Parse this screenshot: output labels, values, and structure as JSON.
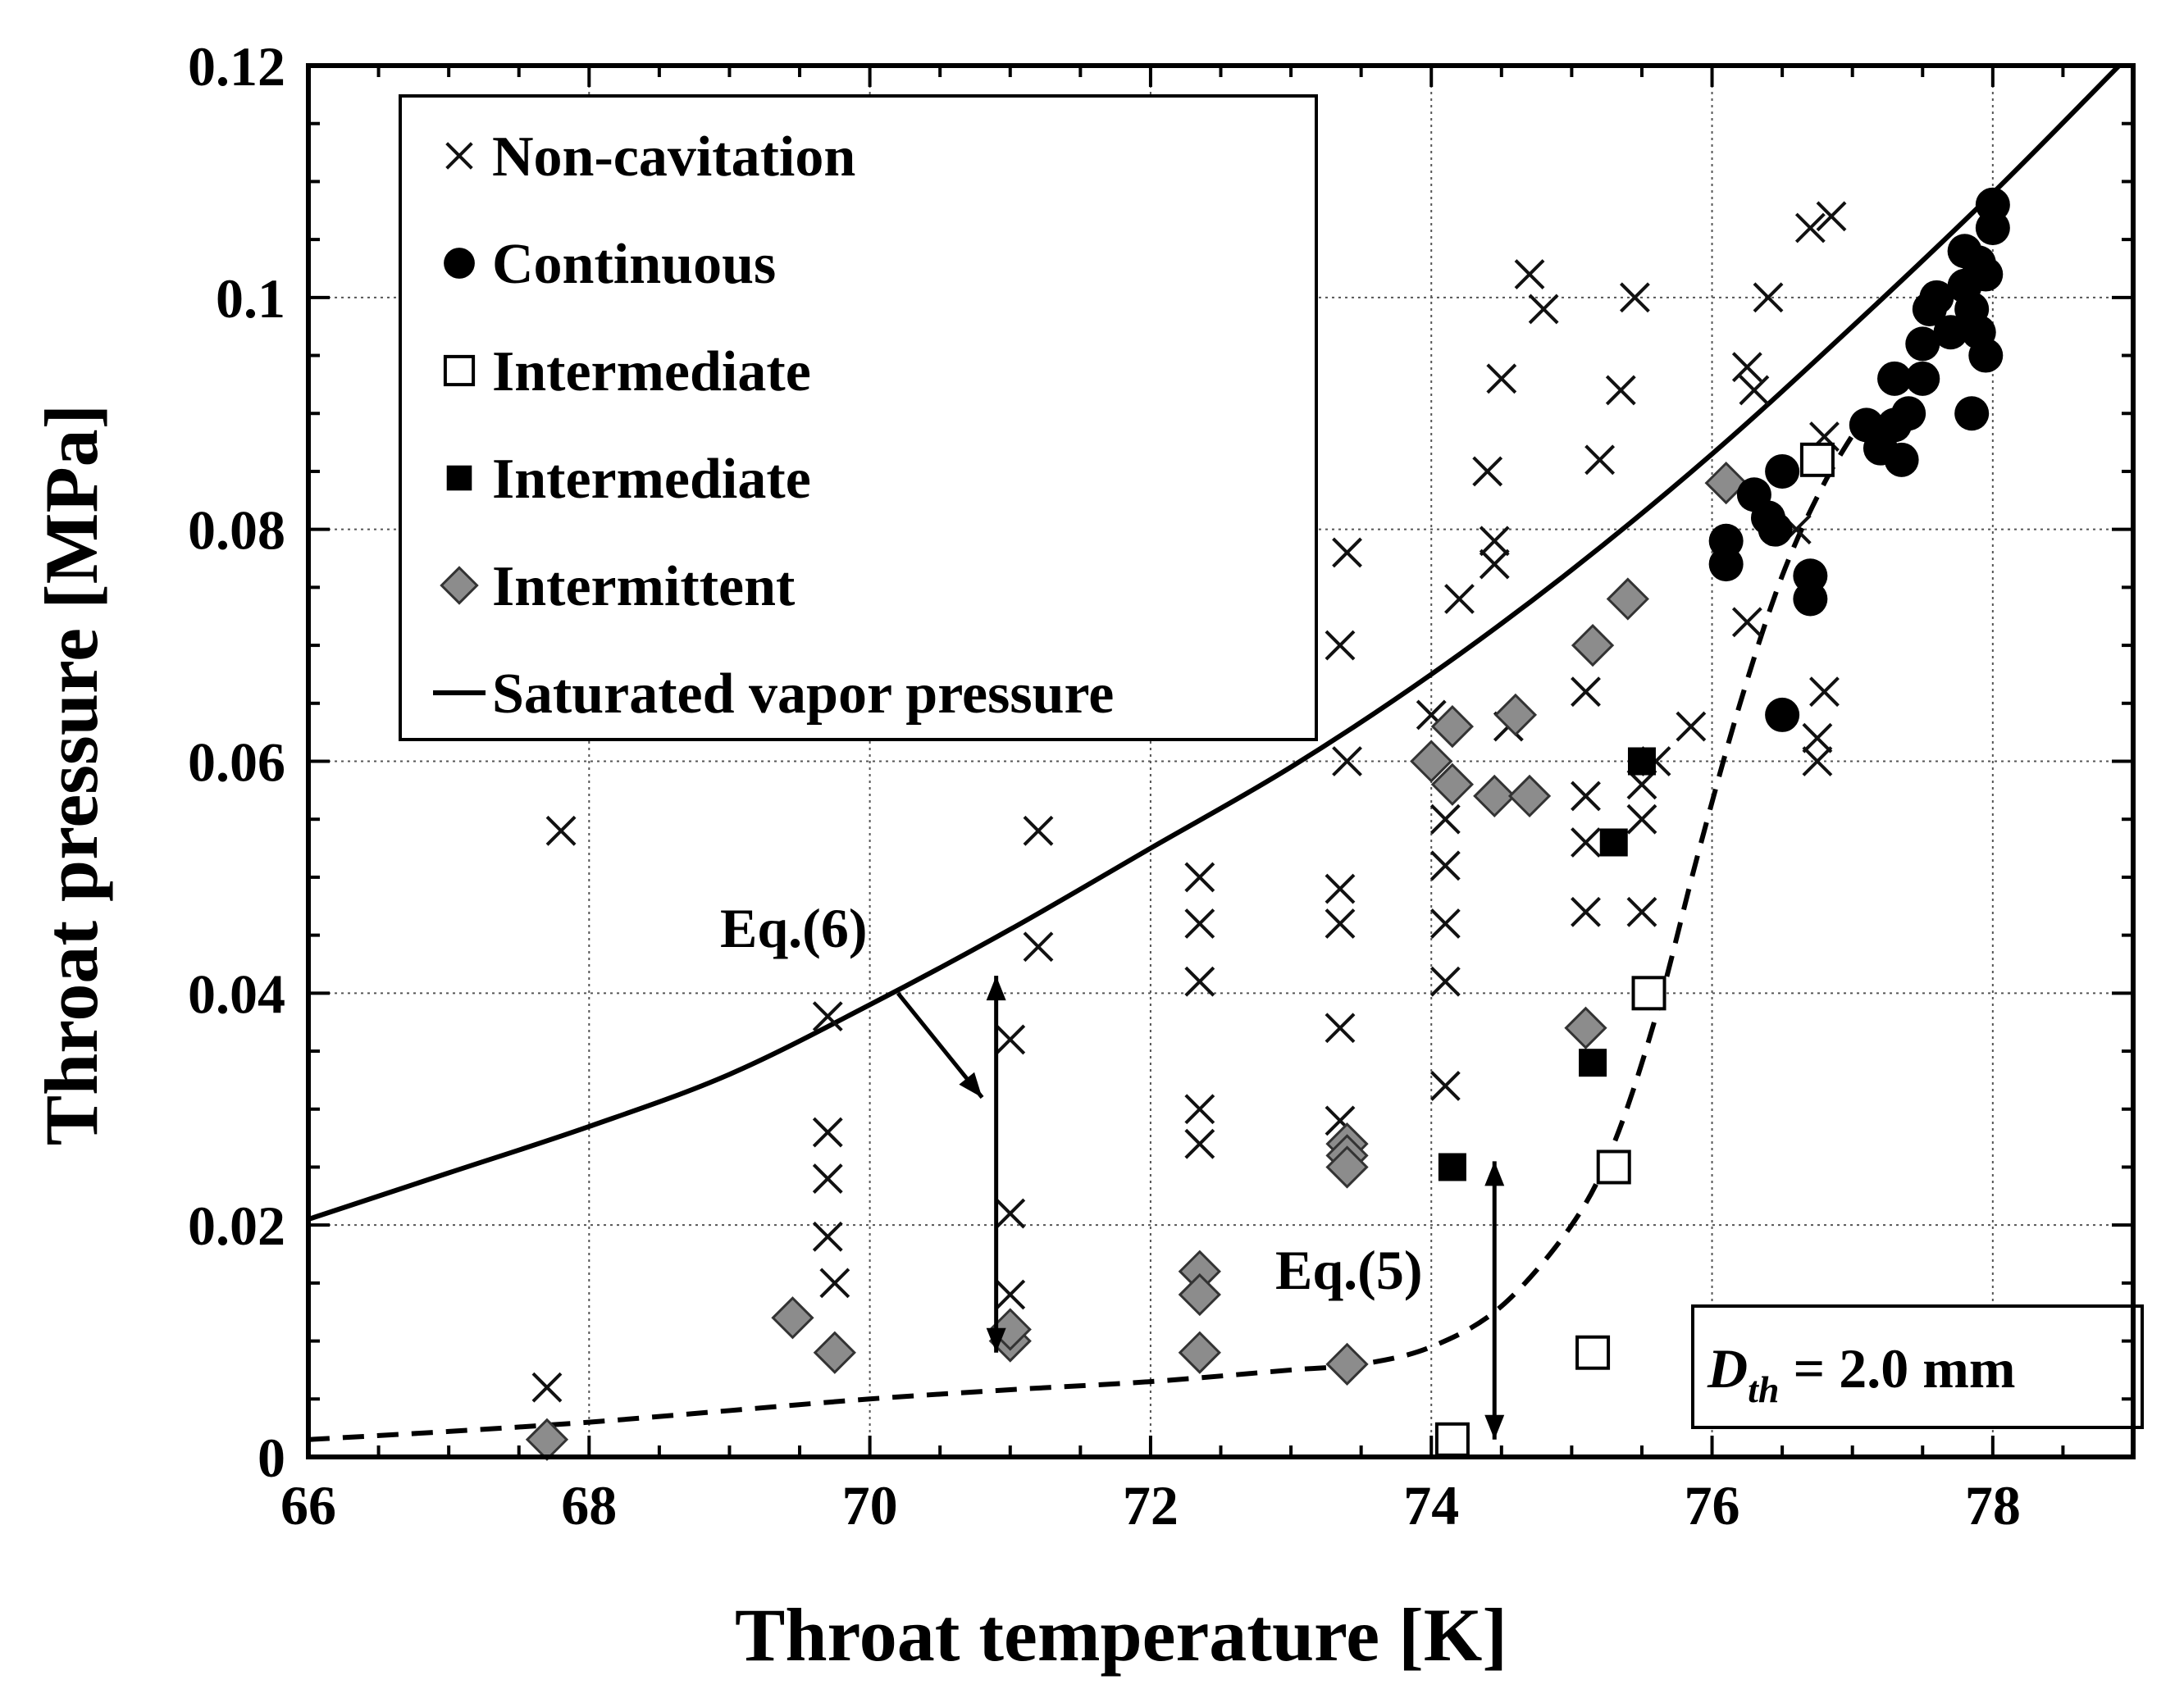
{
  "chart_data": {
    "type": "scatter",
    "xlabel": "Throat temperature [K]",
    "ylabel": "Throat pressure [MPa]",
    "xlim": [
      66,
      79
    ],
    "ylim": [
      0,
      0.12
    ],
    "x_ticks": [
      "66",
      "68",
      "70",
      "72",
      "74",
      "76",
      "78"
    ],
    "y_ticks": [
      "0",
      "0.02",
      "0.04",
      "0.06",
      "0.08",
      "0.1",
      "0.12"
    ],
    "grid": true,
    "legend_position": "top-left",
    "legend": [
      {
        "name": "Non-cavitation",
        "marker": "x"
      },
      {
        "name": "Continuous",
        "marker": "filled-circle"
      },
      {
        "name": "Intermediate",
        "marker": "open-square"
      },
      {
        "name": "Intermediate",
        "marker": "filled-square"
      },
      {
        "name": "Intermittent",
        "marker": "gray-diamond"
      },
      {
        "name": "Saturated vapor pressure",
        "marker": "solid-line"
      }
    ],
    "series": [
      {
        "name": "Non-cavitation",
        "marker": "x",
        "points": [
          [
            67.7,
            0.006
          ],
          [
            67.8,
            0.054
          ],
          [
            69.7,
            0.038
          ],
          [
            69.7,
            0.028
          ],
          [
            69.7,
            0.024
          ],
          [
            69.7,
            0.019
          ],
          [
            69.75,
            0.015
          ],
          [
            71.0,
            0.036
          ],
          [
            71.0,
            0.021
          ],
          [
            71.0,
            0.014
          ],
          [
            71.2,
            0.054
          ],
          [
            71.2,
            0.044
          ],
          [
            72.35,
            0.05
          ],
          [
            72.35,
            0.046
          ],
          [
            72.35,
            0.041
          ],
          [
            72.35,
            0.03
          ],
          [
            72.35,
            0.027
          ],
          [
            73.4,
            0.078
          ],
          [
            73.35,
            0.07
          ],
          [
            73.4,
            0.06
          ],
          [
            73.35,
            0.049
          ],
          [
            73.35,
            0.046
          ],
          [
            73.35,
            0.037
          ],
          [
            73.35,
            0.029
          ],
          [
            74.0,
            0.064
          ],
          [
            74.1,
            0.055
          ],
          [
            74.1,
            0.051
          ],
          [
            74.1,
            0.046
          ],
          [
            74.1,
            0.041
          ],
          [
            74.1,
            0.032
          ],
          [
            74.2,
            0.074
          ],
          [
            74.4,
            0.085
          ],
          [
            74.45,
            0.079
          ],
          [
            74.45,
            0.077
          ],
          [
            74.5,
            0.093
          ],
          [
            74.55,
            0.063
          ],
          [
            74.7,
            0.102
          ],
          [
            74.8,
            0.099
          ],
          [
            75.1,
            0.066
          ],
          [
            75.1,
            0.057
          ],
          [
            75.1,
            0.053
          ],
          [
            75.1,
            0.047
          ],
          [
            75.2,
            0.086
          ],
          [
            75.35,
            0.092
          ],
          [
            75.45,
            0.1
          ],
          [
            75.5,
            0.058
          ],
          [
            75.5,
            0.055
          ],
          [
            75.5,
            0.047
          ],
          [
            75.6,
            0.06
          ],
          [
            75.85,
            0.063
          ],
          [
            76.25,
            0.094
          ],
          [
            76.3,
            0.092
          ],
          [
            76.4,
            0.1
          ],
          [
            76.25,
            0.072
          ],
          [
            76.6,
            0.08
          ],
          [
            76.7,
            0.106
          ],
          [
            76.85,
            0.107
          ],
          [
            76.8,
            0.088
          ],
          [
            76.8,
            0.066
          ],
          [
            76.75,
            0.062
          ],
          [
            76.75,
            0.06
          ]
        ]
      },
      {
        "name": "Continuous",
        "marker": "filled-circle",
        "points": [
          [
            76.1,
            0.079
          ],
          [
            76.1,
            0.077
          ],
          [
            76.3,
            0.083
          ],
          [
            76.4,
            0.081
          ],
          [
            76.5,
            0.085
          ],
          [
            76.45,
            0.08
          ],
          [
            76.7,
            0.076
          ],
          [
            76.7,
            0.074
          ],
          [
            76.5,
            0.064
          ],
          [
            77.1,
            0.089
          ],
          [
            77.2,
            0.087
          ],
          [
            77.3,
            0.093
          ],
          [
            77.3,
            0.089
          ],
          [
            77.4,
            0.09
          ],
          [
            77.35,
            0.086
          ],
          [
            77.5,
            0.096
          ],
          [
            77.55,
            0.099
          ],
          [
            77.5,
            0.093
          ],
          [
            77.6,
            0.1
          ],
          [
            77.7,
            0.097
          ],
          [
            77.8,
            0.101
          ],
          [
            77.8,
            0.104
          ],
          [
            77.85,
            0.099
          ],
          [
            77.9,
            0.103
          ],
          [
            77.9,
            0.097
          ],
          [
            77.95,
            0.102
          ],
          [
            78.0,
            0.106
          ],
          [
            78.0,
            0.108
          ],
          [
            77.95,
            0.095
          ],
          [
            77.85,
            0.09
          ]
        ]
      },
      {
        "name": "Intermediate (open)",
        "marker": "open-square",
        "points": [
          [
            74.15,
            0.0015
          ],
          [
            75.15,
            0.009
          ],
          [
            75.3,
            0.025
          ],
          [
            75.55,
            0.04
          ],
          [
            76.75,
            0.086
          ]
        ]
      },
      {
        "name": "Intermediate (filled)",
        "marker": "filled-square",
        "points": [
          [
            74.15,
            0.025
          ],
          [
            75.15,
            0.034
          ],
          [
            75.3,
            0.053
          ],
          [
            75.5,
            0.06
          ]
        ]
      },
      {
        "name": "Intermittent",
        "marker": "gray-diamond",
        "points": [
          [
            67.7,
            0.0015
          ],
          [
            69.45,
            0.012
          ],
          [
            69.75,
            0.009
          ],
          [
            71.0,
            0.01
          ],
          [
            71.0,
            0.011
          ],
          [
            72.35,
            0.016
          ],
          [
            72.35,
            0.014
          ],
          [
            72.35,
            0.009
          ],
          [
            73.4,
            0.008
          ],
          [
            73.4,
            0.027
          ],
          [
            73.4,
            0.026
          ],
          [
            73.4,
            0.025
          ],
          [
            74.0,
            0.06
          ],
          [
            74.15,
            0.063
          ],
          [
            74.15,
            0.058
          ],
          [
            74.45,
            0.057
          ],
          [
            74.6,
            0.064
          ],
          [
            74.7,
            0.057
          ],
          [
            75.1,
            0.037
          ],
          [
            75.15,
            0.07
          ],
          [
            75.4,
            0.074
          ],
          [
            76.1,
            0.084
          ]
        ]
      },
      {
        "name": "Saturated vapor pressure",
        "marker": "solid-line",
        "x": [
          66,
          67,
          68,
          69,
          70,
          71,
          72,
          73,
          74,
          75,
          76,
          77,
          78,
          78.9
        ],
        "y": [
          0.0205,
          0.0245,
          0.0285,
          0.033,
          0.039,
          0.0455,
          0.0525,
          0.0595,
          0.0675,
          0.0765,
          0.0865,
          0.0975,
          0.109,
          0.12
        ]
      },
      {
        "name": "Eq.(5) fit",
        "marker": "dashed-line",
        "x": [
          66,
          67,
          68,
          69,
          70,
          71,
          72,
          73,
          73.5,
          74,
          74.5,
          75,
          75.3,
          75.6,
          75.9,
          76.2,
          76.5,
          76.8,
          77.1
        ],
        "y": [
          0.0015,
          0.0022,
          0.003,
          0.004,
          0.005,
          0.0058,
          0.0065,
          0.0075,
          0.008,
          0.0095,
          0.013,
          0.02,
          0.027,
          0.038,
          0.052,
          0.065,
          0.076,
          0.084,
          0.09
        ]
      }
    ],
    "annotations": {
      "eq6": "Eq.(6)",
      "eq5": "Eq.(5)",
      "dth_prefix": "D",
      "dth_sub": "th",
      "dth_value": " = 2.0 mm"
    }
  }
}
